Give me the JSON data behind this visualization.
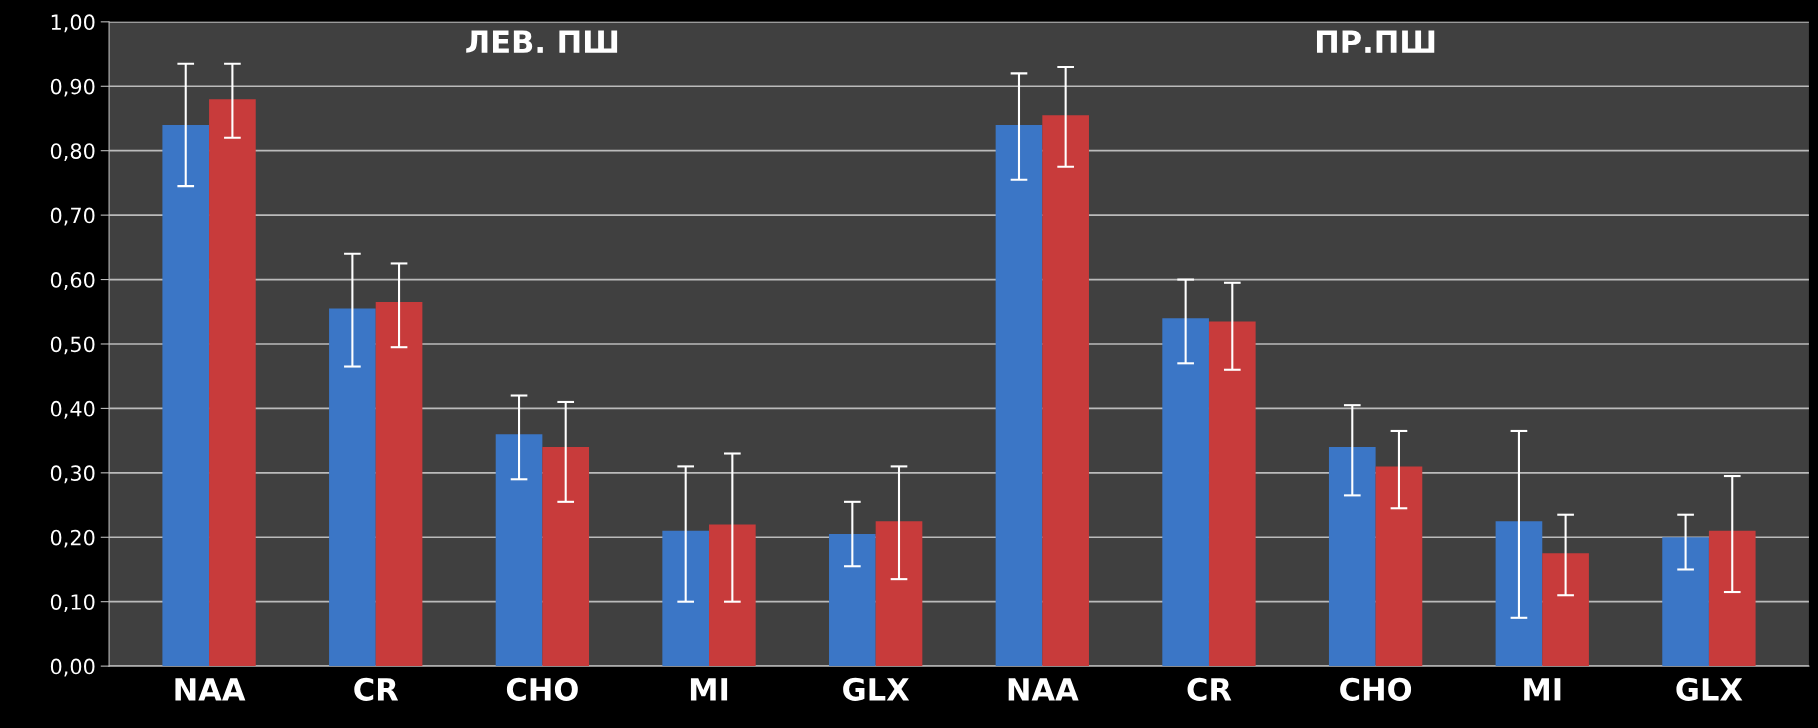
{
  "chart_data": {
    "type": "bar",
    "categories": [
      "NAA",
      "CR",
      "CHO",
      "MI",
      "GLX",
      "NAA",
      "CR",
      "CHO",
      "MI",
      "GLX"
    ],
    "series": [
      {
        "color": "#3b76c6",
        "values": [
          0.84,
          0.555,
          0.36,
          0.21,
          0.205,
          0.84,
          0.54,
          0.34,
          0.225,
          0.2
        ],
        "errors": [
          [
            0.745,
            0.935
          ],
          [
            0.465,
            0.64
          ],
          [
            0.29,
            0.42
          ],
          [
            0.1,
            0.31
          ],
          [
            0.155,
            0.255
          ],
          [
            0.755,
            0.92
          ],
          [
            0.47,
            0.6
          ],
          [
            0.265,
            0.405
          ],
          [
            0.075,
            0.365
          ],
          [
            0.15,
            0.235
          ]
        ]
      },
      {
        "color": "#c83b3b",
        "values": [
          0.88,
          0.565,
          0.34,
          0.22,
          0.225,
          0.855,
          0.535,
          0.31,
          0.175,
          0.21
        ],
        "errors": [
          [
            0.82,
            0.935
          ],
          [
            0.495,
            0.625
          ],
          [
            0.255,
            0.41
          ],
          [
            0.1,
            0.33
          ],
          [
            0.135,
            0.31
          ],
          [
            0.775,
            0.93
          ],
          [
            0.46,
            0.595
          ],
          [
            0.245,
            0.365
          ],
          [
            0.11,
            0.235
          ],
          [
            0.115,
            0.295
          ]
        ]
      }
    ],
    "annotations": [
      "ЛЕВ. ПШ",
      "ПР.ПШ"
    ],
    "ylim": [
      0,
      1
    ],
    "yticks": [
      {
        "value": 0,
        "label": "0,00"
      },
      {
        "value": 0.1,
        "label": "0,10"
      },
      {
        "value": 0.2,
        "label": "0,20"
      },
      {
        "value": 0.3,
        "label": "0,30"
      },
      {
        "value": 0.4,
        "label": "0,40"
      },
      {
        "value": 0.5,
        "label": "0,50"
      },
      {
        "value": 0.6,
        "label": "0,60"
      },
      {
        "value": 0.7,
        "label": "0,70"
      },
      {
        "value": 0.8,
        "label": "0,80"
      },
      {
        "value": 0.9,
        "label": "0,90"
      },
      {
        "value": 1,
        "label": "1,00"
      }
    ],
    "grid": "y"
  }
}
